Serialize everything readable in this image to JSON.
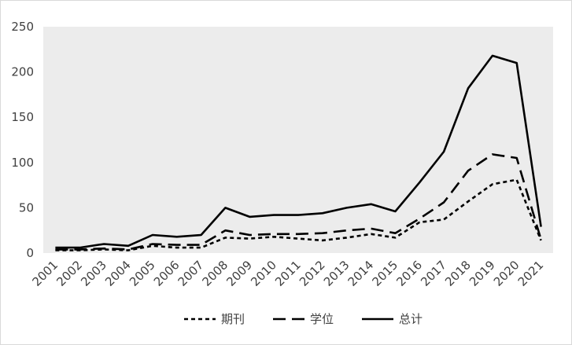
{
  "chart_data": {
    "type": "line",
    "title": "",
    "xlabel": "",
    "ylabel": "",
    "ylim": [
      0,
      250
    ],
    "yticks": [
      0,
      50,
      100,
      150,
      200,
      250
    ],
    "grid": false,
    "legend_position": "bottom",
    "plot_background": "#ececec",
    "line_color": "#000000",
    "categories": [
      "2001",
      "2002",
      "2003",
      "2004",
      "2005",
      "2006",
      "2007",
      "2008",
      "2009",
      "2010",
      "2011",
      "2012",
      "2013",
      "2014",
      "2015",
      "2016",
      "2017",
      "2018",
      "2019",
      "2020",
      "2021"
    ],
    "series": [
      {
        "name": "期刊",
        "dash": "dotted",
        "values": [
          3,
          3,
          4,
          3,
          8,
          6,
          6,
          17,
          16,
          18,
          16,
          14,
          17,
          21,
          17,
          34,
          37,
          57,
          76,
          81,
          14
        ]
      },
      {
        "name": "学位",
        "dash": "long-dash",
        "values": [
          4,
          4,
          5,
          4,
          10,
          9,
          9,
          25,
          20,
          21,
          21,
          22,
          25,
          27,
          22,
          38,
          56,
          91,
          109,
          105,
          15
        ]
      },
      {
        "name": "总计",
        "dash": "solid",
        "values": [
          6,
          6,
          10,
          8,
          20,
          18,
          20,
          50,
          40,
          42,
          42,
          44,
          50,
          54,
          46,
          78,
          112,
          182,
          218,
          210,
          29
        ]
      }
    ]
  }
}
